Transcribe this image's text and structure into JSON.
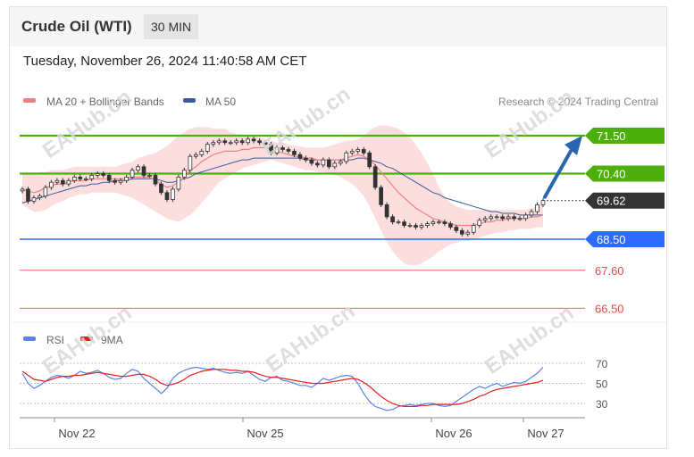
{
  "header": {
    "title": "Crude Oil (WTI)",
    "timeframe": "30 MIN",
    "datetime": "Tuesday, November 26, 2024 11:40:58 AM CET"
  },
  "legend": {
    "ma20_label": "MA 20 + Bollinger Bands",
    "ma50_label": "MA 50",
    "source": "Research © 2024 Trading Central",
    "rsi_label": "RSI",
    "ma9_label": "9MA"
  },
  "watermark": "EAHub.cn",
  "colors": {
    "green_level": "#4caf0b",
    "blue_level": "#2b6bff",
    "red_level": "#e64a4a",
    "current": "#333333",
    "ma20": "#f08080",
    "ma50": "#3a5a9a",
    "bollinger": "#fbd3d3",
    "candle": "#333333",
    "arrow": "#2a65b0",
    "rsi": "#5b83e6",
    "ma9": "#e52020"
  },
  "chart_data": [
    {
      "type": "candlestick",
      "instrument": "Crude Oil (WTI)",
      "interval": "30 MIN",
      "x_tick_labels": [
        "Nov 22",
        "Nov 25",
        "Nov 26",
        "Nov 27"
      ],
      "y_range": [
        66.3,
        71.9
      ],
      "closes": [
        69.95,
        69.6,
        69.7,
        69.75,
        70.0,
        70.15,
        70.2,
        70.1,
        70.2,
        70.3,
        70.25,
        70.25,
        70.35,
        70.4,
        70.35,
        70.2,
        70.15,
        70.2,
        70.3,
        70.5,
        70.6,
        70.35,
        70.35,
        70.1,
        69.85,
        69.65,
        69.95,
        70.3,
        70.5,
        70.9,
        70.95,
        71.05,
        71.25,
        71.3,
        71.35,
        71.3,
        71.3,
        71.35,
        71.3,
        71.4,
        71.35,
        71.3,
        71.25,
        71.0,
        71.15,
        71.1,
        71.05,
        70.95,
        70.85,
        70.8,
        70.7,
        70.65,
        70.8,
        70.6,
        70.7,
        70.75,
        71.0,
        71.05,
        71.1,
        71.0,
        70.6,
        70.0,
        69.5,
        69.15,
        69.0,
        69.0,
        68.9,
        68.9,
        68.85,
        68.9,
        68.95,
        69.0,
        69.0,
        68.95,
        68.85,
        68.75,
        68.65,
        68.7,
        68.9,
        69.05,
        69.1,
        69.15,
        69.15,
        69.1,
        69.15,
        69.1,
        69.1,
        69.2,
        69.3,
        69.5,
        69.62
      ],
      "ma20": [
        69.95,
        69.9,
        69.85,
        69.9,
        70.0,
        70.05,
        70.1,
        70.1,
        70.15,
        70.2,
        70.2,
        70.2,
        70.25,
        70.25,
        70.25,
        70.25,
        70.25,
        70.25,
        70.25,
        70.3,
        70.3,
        70.3,
        70.3,
        70.2,
        70.1,
        70.0,
        70.05,
        70.15,
        70.3,
        70.5,
        70.6,
        70.75,
        70.85,
        70.95,
        71.0,
        71.05,
        71.05,
        71.05,
        71.1,
        71.1,
        71.15,
        71.15,
        71.15,
        71.1,
        71.05,
        71.0,
        70.95,
        70.9,
        70.9,
        70.85,
        70.85,
        70.8,
        70.8,
        70.8,
        70.8,
        70.8,
        70.85,
        70.9,
        70.95,
        70.9,
        70.8,
        70.65,
        70.45,
        70.25,
        70.05,
        69.85,
        69.7,
        69.55,
        69.4,
        69.3,
        69.2,
        69.1,
        69.05,
        69.0,
        68.95,
        68.9,
        68.9,
        68.9,
        68.9,
        68.95,
        69.0,
        69.0,
        69.05,
        69.05,
        69.1,
        69.1,
        69.1,
        69.1,
        69.15,
        69.15,
        69.2
      ],
      "ma50": [
        69.55,
        69.6,
        69.65,
        69.7,
        69.75,
        69.8,
        69.85,
        69.9,
        69.95,
        70.0,
        70.05,
        70.05,
        70.1,
        70.1,
        70.15,
        70.15,
        70.2,
        70.2,
        70.2,
        70.25,
        70.25,
        70.25,
        70.25,
        70.25,
        70.2,
        70.15,
        70.15,
        70.2,
        70.25,
        70.3,
        70.4,
        70.45,
        70.5,
        70.55,
        70.6,
        70.65,
        70.7,
        70.75,
        70.8,
        70.8,
        70.85,
        70.85,
        70.85,
        70.85,
        70.85,
        70.85,
        70.85,
        70.85,
        70.85,
        70.8,
        70.8,
        70.8,
        70.8,
        70.8,
        70.8,
        70.8,
        70.8,
        70.8,
        70.85,
        70.85,
        70.8,
        70.75,
        70.7,
        70.6,
        70.55,
        70.45,
        70.35,
        70.25,
        70.15,
        70.05,
        69.95,
        69.85,
        69.8,
        69.7,
        69.65,
        69.6,
        69.55,
        69.5,
        69.45,
        69.4,
        69.35,
        69.3,
        69.3,
        69.25,
        69.25,
        69.25,
        69.2,
        69.2,
        69.2,
        69.2,
        69.2
      ],
      "bollinger_upper": [
        70.4,
        70.4,
        70.4,
        70.45,
        70.45,
        70.5,
        70.5,
        70.5,
        70.55,
        70.6,
        70.6,
        70.6,
        70.6,
        70.6,
        70.6,
        70.6,
        70.6,
        70.65,
        70.7,
        70.75,
        70.85,
        70.9,
        70.95,
        71.0,
        71.1,
        71.2,
        71.35,
        71.5,
        71.6,
        71.7,
        71.75,
        71.75,
        71.75,
        71.7,
        71.7,
        71.7,
        71.6,
        71.55,
        71.55,
        71.5,
        71.5,
        71.45,
        71.4,
        71.35,
        71.3,
        71.3,
        71.25,
        71.2,
        71.2,
        71.15,
        71.15,
        71.15,
        71.15,
        71.2,
        71.25,
        71.3,
        71.35,
        71.35,
        71.4,
        71.5,
        71.65,
        71.75,
        71.8,
        71.8,
        71.75,
        71.7,
        71.6,
        71.45,
        71.25,
        71.0,
        70.7,
        70.4,
        70.0,
        69.75,
        69.55,
        69.45,
        69.4,
        69.35,
        69.35,
        69.35,
        69.35,
        69.35,
        69.35,
        69.35,
        69.35,
        69.35,
        69.35,
        69.35,
        69.4,
        69.45,
        69.5
      ],
      "bollinger_lower": [
        69.5,
        69.4,
        69.3,
        69.3,
        69.35,
        69.45,
        69.55,
        69.6,
        69.7,
        69.75,
        69.8,
        69.8,
        69.85,
        69.85,
        69.85,
        69.85,
        69.85,
        69.8,
        69.75,
        69.7,
        69.6,
        69.5,
        69.4,
        69.3,
        69.2,
        69.1,
        69.05,
        69.0,
        69.1,
        69.2,
        69.35,
        69.55,
        69.75,
        69.95,
        70.15,
        70.25,
        70.35,
        70.45,
        70.55,
        70.6,
        70.65,
        70.7,
        70.75,
        70.8,
        70.75,
        70.7,
        70.65,
        70.6,
        70.55,
        70.5,
        70.5,
        70.45,
        70.45,
        70.4,
        70.35,
        70.3,
        70.2,
        70.1,
        69.95,
        69.75,
        69.45,
        69.1,
        68.75,
        68.4,
        68.15,
        67.95,
        67.8,
        67.75,
        67.75,
        67.8,
        67.9,
        68.0,
        68.15,
        68.25,
        68.35,
        68.4,
        68.45,
        68.45,
        68.5,
        68.55,
        68.6,
        68.65,
        68.7,
        68.7,
        68.75,
        68.75,
        68.8,
        68.8,
        68.8,
        68.85,
        68.85
      ],
      "levels": [
        {
          "value": 71.5,
          "label": "71.50",
          "style": "resistance"
        },
        {
          "value": 70.4,
          "label": "70.40",
          "style": "resistance"
        },
        {
          "value": 69.62,
          "label": "69.62",
          "style": "current"
        },
        {
          "value": 68.5,
          "label": "68.50",
          "style": "support"
        },
        {
          "value": 67.6,
          "label": "67.60",
          "style": "support-minor"
        },
        {
          "value": 66.5,
          "label": "66.50",
          "style": "support-minor"
        }
      ],
      "projection_target": 71.5
    },
    {
      "type": "line",
      "indicator": "RSI",
      "y_range": [
        20,
        80
      ],
      "y_ticks": [
        70,
        50,
        30
      ],
      "x_tick_labels": [
        "Nov 22",
        "Nov 25",
        "Nov 26",
        "Nov 27"
      ],
      "series": [
        {
          "name": "RSI",
          "values": [
            60,
            50,
            45,
            48,
            52,
            56,
            58,
            57,
            55,
            58,
            62,
            60,
            61,
            63,
            60,
            56,
            54,
            55,
            60,
            64,
            62,
            55,
            50,
            45,
            40,
            45,
            55,
            60,
            63,
            65,
            66,
            65,
            64,
            65,
            63,
            61,
            60,
            61,
            60,
            62,
            58,
            54,
            52,
            56,
            57,
            53,
            52,
            50,
            48,
            48,
            46,
            50,
            55,
            53,
            55,
            57,
            58,
            57,
            50,
            40,
            32,
            27,
            25,
            23,
            24,
            27,
            28,
            29,
            28,
            29,
            30,
            30,
            28,
            27,
            28,
            32,
            36,
            40,
            44,
            47,
            45,
            48,
            50,
            47,
            49,
            51,
            50,
            52,
            56,
            60,
            66
          ]
        },
        {
          "name": "9MA",
          "values": [
            62,
            58,
            54,
            53,
            52,
            54,
            56,
            57,
            57,
            58,
            58,
            59,
            60,
            61,
            60,
            59,
            58,
            57,
            57,
            58,
            59,
            59,
            57,
            54,
            50,
            48,
            49,
            51,
            54,
            58,
            60,
            62,
            63,
            64,
            64,
            64,
            63,
            63,
            62,
            62,
            61,
            59,
            57,
            56,
            56,
            55,
            54,
            53,
            52,
            51,
            50,
            50,
            50,
            51,
            52,
            53,
            54,
            55,
            54,
            51,
            47,
            42,
            37,
            33,
            30,
            28,
            27,
            27,
            27,
            28,
            28,
            29,
            29,
            29,
            29,
            29,
            30,
            32,
            34,
            37,
            39,
            42,
            44,
            45,
            46,
            47,
            48,
            49,
            50,
            51,
            53
          ]
        }
      ]
    }
  ]
}
